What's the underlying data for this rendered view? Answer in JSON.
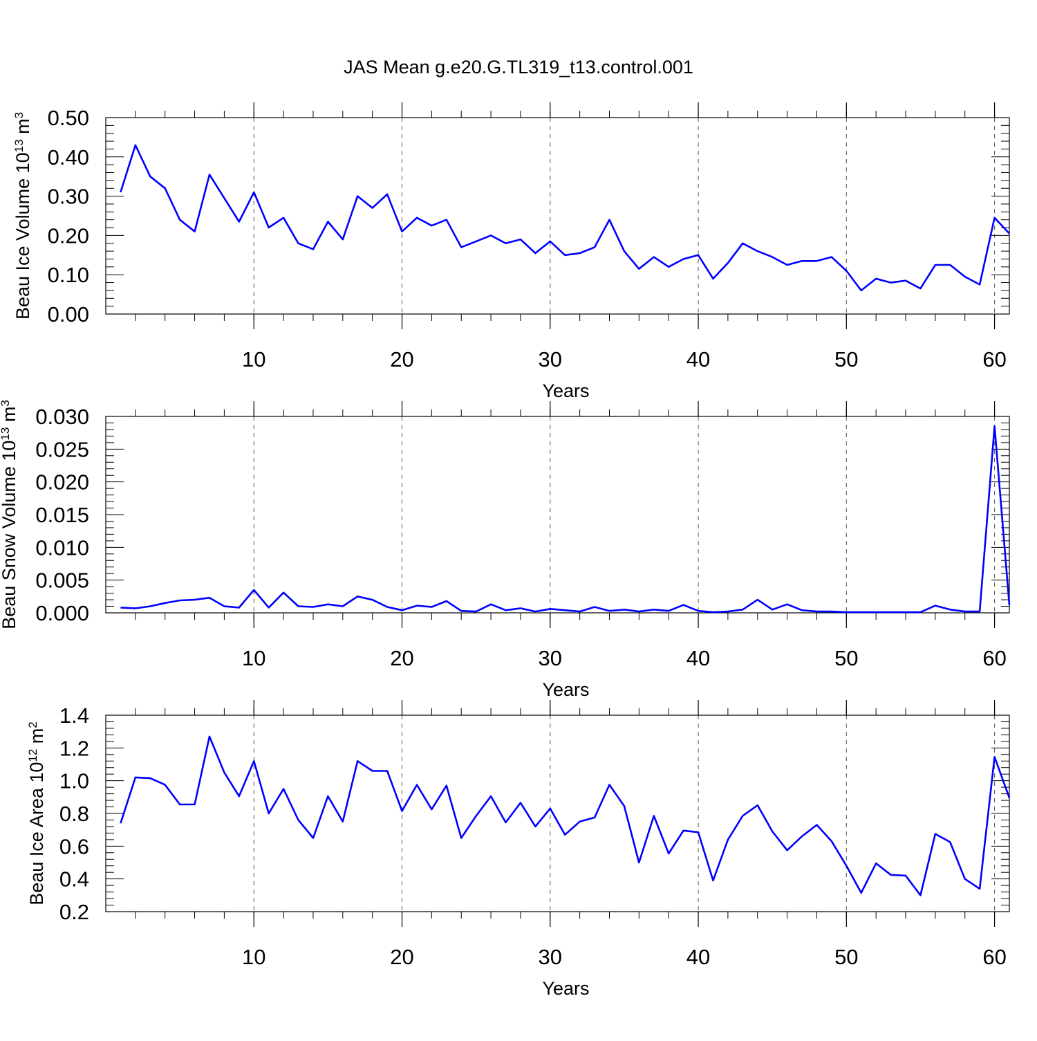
{
  "figure_title": "JAS Mean g.e20.G.TL319_t13.control.001",
  "line_color": "#0000ff",
  "chart_data": [
    {
      "type": "line",
      "title": "JAS Mean g.e20.G.TL319_t13.control.001",
      "ylabel": "Beau Ice Volume 10",
      "ylabel_exp": "13",
      "ylabel_unit": " m",
      "ylabel_unit_exp": "3",
      "xlabel": "Years",
      "xlim": [
        0,
        61
      ],
      "ylim": [
        0.0,
        0.5
      ],
      "xticks": [
        "10",
        "20",
        "30",
        "40",
        "50",
        "60"
      ],
      "yticks": [
        "0.00",
        "0.10",
        "0.20",
        "0.30",
        "0.40",
        "0.50"
      ],
      "grid": "vertical dashed at major x ticks",
      "series": [
        {
          "name": "Beau Ice Volume",
          "x": [
            1,
            2,
            3,
            4,
            5,
            6,
            7,
            8,
            9,
            10,
            11,
            12,
            13,
            14,
            15,
            16,
            17,
            18,
            19,
            20,
            21,
            22,
            23,
            24,
            25,
            26,
            27,
            28,
            29,
            30,
            31,
            32,
            33,
            34,
            35,
            36,
            37,
            38,
            39,
            40,
            41,
            42,
            43,
            44,
            45,
            46,
            47,
            48,
            49,
            50,
            51,
            52,
            53,
            54,
            55,
            56,
            57,
            58,
            59,
            60,
            61
          ],
          "values": [
            0.31,
            0.43,
            0.35,
            0.32,
            0.24,
            0.21,
            0.355,
            0.295,
            0.235,
            0.31,
            0.22,
            0.245,
            0.18,
            0.165,
            0.235,
            0.19,
            0.3,
            0.27,
            0.305,
            0.21,
            0.245,
            0.225,
            0.24,
            0.17,
            0.185,
            0.2,
            0.18,
            0.19,
            0.155,
            0.185,
            0.15,
            0.155,
            0.17,
            0.24,
            0.16,
            0.115,
            0.145,
            0.12,
            0.14,
            0.15,
            0.09,
            0.13,
            0.18,
            0.16,
            0.145,
            0.125,
            0.135,
            0.135,
            0.145,
            0.11,
            0.06,
            0.09,
            0.08,
            0.085,
            0.065,
            0.125,
            0.125,
            0.095,
            0.075,
            0.245,
            0.205
          ]
        }
      ]
    },
    {
      "type": "line",
      "ylabel": "Beau Snow Volume 10",
      "ylabel_exp": "13",
      "ylabel_unit": " m",
      "ylabel_unit_exp": "3",
      "xlabel": "Years",
      "xlim": [
        0,
        61
      ],
      "ylim": [
        0.0,
        0.03
      ],
      "xticks": [
        "10",
        "20",
        "30",
        "40",
        "50",
        "60"
      ],
      "yticks": [
        "0.000",
        "0.005",
        "0.010",
        "0.015",
        "0.020",
        "0.025",
        "0.030"
      ],
      "grid": "vertical dashed at major x ticks",
      "series": [
        {
          "name": "Beau Snow Volume",
          "x": [
            1,
            2,
            3,
            4,
            5,
            6,
            7,
            8,
            9,
            10,
            11,
            12,
            13,
            14,
            15,
            16,
            17,
            18,
            19,
            20,
            21,
            22,
            23,
            24,
            25,
            26,
            27,
            28,
            29,
            30,
            31,
            32,
            33,
            34,
            35,
            36,
            37,
            38,
            39,
            40,
            41,
            42,
            43,
            44,
            45,
            46,
            47,
            48,
            49,
            50,
            51,
            52,
            53,
            54,
            55,
            56,
            57,
            58,
            59,
            60,
            61
          ],
          "values": [
            0.0008,
            0.0007,
            0.001,
            0.0015,
            0.0019,
            0.002,
            0.0023,
            0.001,
            0.0008,
            0.0035,
            0.0008,
            0.0031,
            0.001,
            0.0009,
            0.0013,
            0.001,
            0.0025,
            0.002,
            0.0009,
            0.0004,
            0.0011,
            0.0009,
            0.0018,
            0.0003,
            0.0002,
            0.0013,
            0.0004,
            0.0007,
            0.0002,
            0.0006,
            0.0004,
            0.0002,
            0.0009,
            0.0003,
            0.0005,
            0.0002,
            0.0005,
            0.0003,
            0.0012,
            0.0003,
            0.0001,
            0.0002,
            0.0005,
            0.002,
            0.0005,
            0.0013,
            0.0004,
            0.0002,
            0.0002,
            0.0001,
            0.0001,
            0.0001,
            0.0001,
            0.0001,
            0.0001,
            0.0011,
            0.0005,
            0.0002,
            0.0002,
            0.0285,
            0.0012
          ]
        }
      ]
    },
    {
      "type": "line",
      "ylabel": "Beau Ice Area 10",
      "ylabel_exp": "12",
      "ylabel_unit": " m",
      "ylabel_unit_exp": "2",
      "xlabel": "Years",
      "xlim": [
        0,
        61
      ],
      "ylim": [
        0.2,
        1.4
      ],
      "xticks": [
        "10",
        "20",
        "30",
        "40",
        "50",
        "60"
      ],
      "yticks": [
        "0.2",
        "0.4",
        "0.6",
        "0.8",
        "1.0",
        "1.2",
        "1.4"
      ],
      "grid": "vertical dashed at major x ticks",
      "series": [
        {
          "name": "Beau Ice Area",
          "x": [
            1,
            2,
            3,
            4,
            5,
            6,
            7,
            8,
            9,
            10,
            11,
            12,
            13,
            14,
            15,
            16,
            17,
            18,
            19,
            20,
            21,
            22,
            23,
            24,
            25,
            26,
            27,
            28,
            29,
            30,
            31,
            32,
            33,
            34,
            35,
            36,
            37,
            38,
            39,
            40,
            41,
            42,
            43,
            44,
            45,
            46,
            47,
            48,
            49,
            50,
            51,
            52,
            53,
            54,
            55,
            56,
            57,
            58,
            59,
            60,
            61
          ],
          "values": [
            0.74,
            1.02,
            1.015,
            0.975,
            0.855,
            0.855,
            1.27,
            1.05,
            0.905,
            1.12,
            0.8,
            0.95,
            0.76,
            0.65,
            0.905,
            0.75,
            1.12,
            1.06,
            1.06,
            0.815,
            0.975,
            0.825,
            0.97,
            0.65,
            0.785,
            0.905,
            0.745,
            0.865,
            0.72,
            0.83,
            0.67,
            0.75,
            0.775,
            0.975,
            0.845,
            0.5,
            0.785,
            0.555,
            0.695,
            0.685,
            0.39,
            0.64,
            0.785,
            0.85,
            0.69,
            0.575,
            0.66,
            0.73,
            0.63,
            0.48,
            0.315,
            0.495,
            0.425,
            0.42,
            0.3,
            0.675,
            0.625,
            0.4,
            0.34,
            1.145,
            0.895
          ]
        }
      ]
    }
  ]
}
